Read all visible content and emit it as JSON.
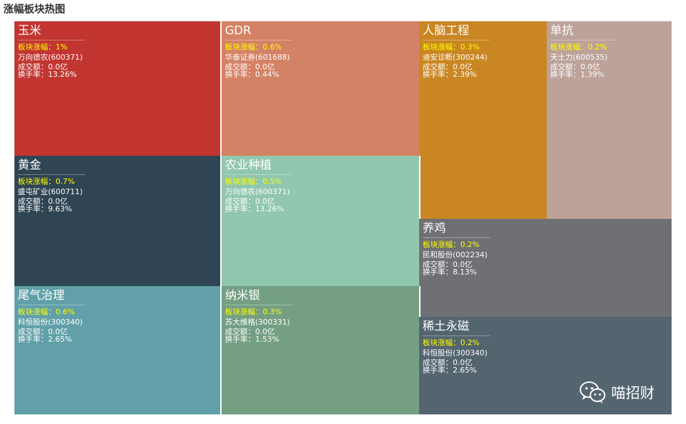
{
  "header": {
    "title": "涨幅板块热图"
  },
  "labels": {
    "change_prefix": "板块涨幅：",
    "volume_prefix": "成交额：",
    "turnover_prefix": "换手率："
  },
  "watermark": {
    "text": "喵招财"
  },
  "chart_data": {
    "type": "treemap",
    "title": "涨幅板块热图",
    "nodes": [
      {
        "name": "玉米",
        "change": "1%",
        "stock": "万向德农(600371)",
        "volume": "0.0亿",
        "turnover": "13.26%",
        "color": "#c23531"
      },
      {
        "name": "GDR",
        "change": "0.6%",
        "stock": "华泰证券(601688)",
        "volume": "0.0亿",
        "turnover": "0.44%",
        "color": "#d48265"
      },
      {
        "name": "人脑工程",
        "change": "0.3%",
        "stock": "迪安诊断(300244)",
        "volume": "0.0亿",
        "turnover": "2.39%",
        "color": "#ca8622"
      },
      {
        "name": "单抗",
        "change": "0.2%",
        "stock": "天士力(600535)",
        "volume": "0.0亿",
        "turnover": "1.39%",
        "color": "#bda29a"
      },
      {
        "name": "黄金",
        "change": "0.7%",
        "stock": "盛屯矿业(600711)",
        "volume": "0.0亿",
        "turnover": "9.63%",
        "color": "#2f4554"
      },
      {
        "name": "农业种植",
        "change": "0.5%",
        "stock": "万向德农(600371)",
        "volume": "0.0亿",
        "turnover": "13.26%",
        "color": "#91c7ae"
      },
      {
        "name": "养鸡",
        "change": "0.2%",
        "stock": "民和股份(002234)",
        "volume": "0.0亿",
        "turnover": "8.13%",
        "color": "#6e7074"
      },
      {
        "name": "尾气治理",
        "change": "0.6%",
        "stock": "科恒股份(300340)",
        "volume": "0.0亿",
        "turnover": "2.65%",
        "color": "#61a0a8"
      },
      {
        "name": "纳米银",
        "change": "0.3%",
        "stock": "苏大维格(300331)",
        "volume": "0.0亿",
        "turnover": "1.53%",
        "color": "#749f83"
      },
      {
        "name": "稀土永磁",
        "change": "0.2%",
        "stock": "科恒股份(300340)",
        "volume": "0.0亿",
        "turnover": "2.65%",
        "color": "#546570"
      }
    ]
  }
}
